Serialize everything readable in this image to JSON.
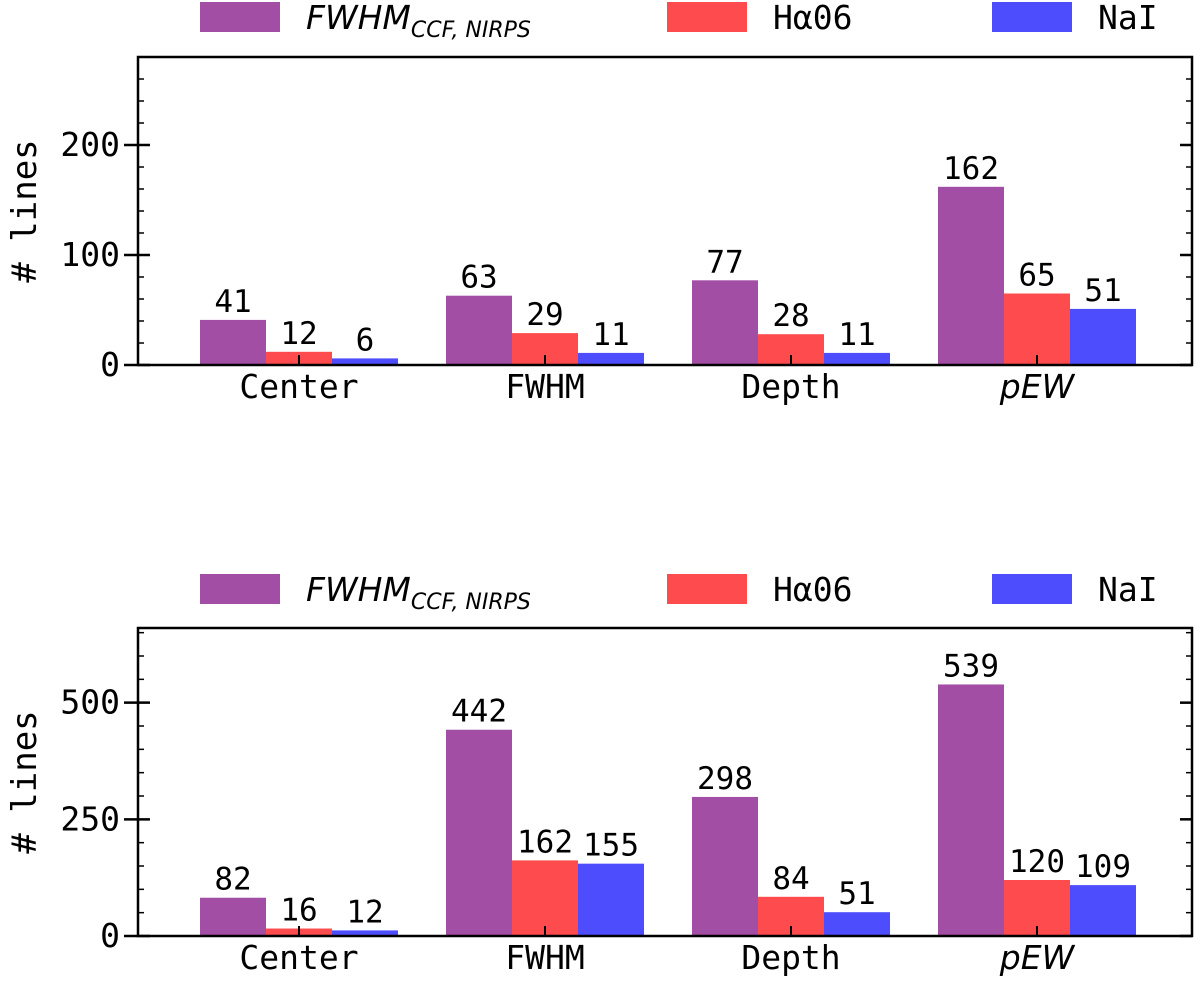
{
  "chart_data": [
    {
      "type": "bar",
      "ylabel": "# lines",
      "categories": [
        "Center",
        "FWHM",
        "Depth",
        "pEW"
      ],
      "category_italic": [
        false,
        false,
        false,
        true
      ],
      "ylim": [
        0,
        280
      ],
      "yticks": [
        0,
        100,
        200
      ],
      "minor_step": 20,
      "series": [
        {
          "name": "FWHM",
          "subscript": "CCF, NIRPS",
          "color": "#a34ea5",
          "values": [
            41,
            63,
            77,
            162
          ]
        },
        {
          "name": "Hα06",
          "color": "#fe4b4e",
          "values": [
            12,
            29,
            28,
            65
          ]
        },
        {
          "name": "NaI",
          "color": "#4e4dfe",
          "values": [
            6,
            11,
            11,
            51
          ]
        }
      ],
      "legend": "top"
    },
    {
      "type": "bar",
      "ylabel": "# lines",
      "categories": [
        "Center",
        "FWHM",
        "Depth",
        "pEW"
      ],
      "category_italic": [
        false,
        false,
        false,
        true
      ],
      "ylim": [
        0,
        660
      ],
      "yticks": [
        0,
        250,
        500
      ],
      "minor_step": 50,
      "series": [
        {
          "name": "FWHM",
          "subscript": "CCF, NIRPS",
          "color": "#a34ea5",
          "values": [
            82,
            442,
            298,
            539
          ]
        },
        {
          "name": "Hα06",
          "color": "#fe4b4e",
          "values": [
            16,
            162,
            84,
            120
          ]
        },
        {
          "name": "NaI",
          "color": "#4e4dfe",
          "values": [
            12,
            155,
            51,
            109
          ]
        }
      ],
      "legend": "top"
    }
  ]
}
